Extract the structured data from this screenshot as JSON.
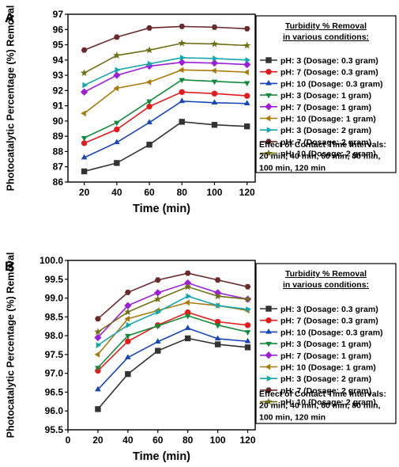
{
  "chart_data": [
    {
      "type": "line",
      "panel_label": "A",
      "xlabel": "Time (min)",
      "ylabel": "Photocatalytic Percentage (%) Removal",
      "xlim": [
        10,
        125
      ],
      "ylim": [
        86,
        97
      ],
      "xticks": [
        20,
        40,
        60,
        80,
        100,
        120
      ],
      "yticks": [
        86,
        87,
        88,
        89,
        90,
        91,
        92,
        93,
        94,
        95,
        96,
        97
      ],
      "x": [
        20,
        40,
        60,
        80,
        100,
        120
      ],
      "legend": {
        "title_line1": "Turbidity % Removal",
        "title_line2": "in various conditions:",
        "note_lines": [
          "Effect of Contact Time Intervals:",
          "20 min, 40 min, 60 min, 80 min,",
          "100 min, 120 min"
        ],
        "placement": "right, outside plot"
      },
      "series": [
        {
          "name": "pH: 3 (Dosage: 0.3 gram)",
          "color": "#333333",
          "marker": "square",
          "values": [
            86.7,
            87.25,
            88.45,
            89.95,
            89.75,
            89.65
          ]
        },
        {
          "name": "pH: 7 (Dosage: 0.3 gram)",
          "color": "#e41b1b",
          "marker": "circle",
          "values": [
            88.55,
            89.45,
            90.95,
            91.9,
            91.8,
            91.65
          ]
        },
        {
          "name": "pH: 10 (Dosage: 0.3 gram)",
          "color": "#1747b5",
          "marker": "triangle-up",
          "values": [
            87.6,
            88.6,
            89.9,
            91.3,
            91.2,
            91.15
          ]
        },
        {
          "name": "pH: 3 (Dosage: 1 gram)",
          "color": "#138a3a",
          "marker": "triangle-down",
          "values": [
            88.9,
            89.9,
            91.3,
            92.7,
            92.6,
            92.5
          ]
        },
        {
          "name": "pH: 7 (Dosage: 1 gram)",
          "color": "#9b1fd8",
          "marker": "diamond",
          "values": [
            91.9,
            93.0,
            93.6,
            93.85,
            93.8,
            93.7
          ]
        },
        {
          "name": "pH: 10 (Dosage: 1 gram)",
          "color": "#a87c0c",
          "marker": "triangle-left",
          "values": [
            90.5,
            92.15,
            92.55,
            93.35,
            93.3,
            93.2
          ]
        },
        {
          "name": "pH: 3 (Dosage: 2 gram)",
          "color": "#14a6ad",
          "marker": "triangle-right",
          "values": [
            92.35,
            93.35,
            93.75,
            94.15,
            94.1,
            94.0
          ]
        },
        {
          "name": "pH: 7 (Dosage: 2 gram)",
          "color": "#6b2a2a",
          "marker": "hexagon",
          "values": [
            94.65,
            95.5,
            96.1,
            96.2,
            96.15,
            96.05
          ]
        },
        {
          "name": "pH: 10 (Dosage: 2 gram)",
          "color": "#6e6e14",
          "marker": "star",
          "values": [
            93.15,
            94.3,
            94.65,
            95.1,
            95.05,
            94.95
          ]
        }
      ]
    },
    {
      "type": "line",
      "panel_label": "B",
      "xlabel": "Time (min)",
      "ylabel": "Photocatalytic Percentage (%) Removal",
      "xlim": [
        0,
        125
      ],
      "ylim": [
        95.5,
        100.0
      ],
      "xticks": [
        0,
        20,
        40,
        60,
        80,
        100,
        120
      ],
      "yticks": [
        "95.5",
        "96.0",
        "96.5",
        "97.0",
        "97.5",
        "98.0",
        "98.5",
        "99.0",
        "99.5",
        "100.0"
      ],
      "x": [
        20,
        40,
        60,
        80,
        100,
        120
      ],
      "legend": {
        "title_line1": "Turbidity % Removal",
        "title_line2": "in various conditions:",
        "note_lines": [
          "Effect of Contact Time Intervals:",
          "20 min, 40 min, 60 min, 80 min,",
          "100 min, 120 min"
        ],
        "placement": "right, outside plot"
      },
      "series": [
        {
          "name": "pH: 3 (Dosage: 0.3 gram)",
          "color": "#333333",
          "marker": "square",
          "values": [
            96.05,
            96.98,
            97.6,
            97.93,
            97.77,
            97.69
          ]
        },
        {
          "name": "pH: 7 (Dosage: 0.3 gram)",
          "color": "#e41b1b",
          "marker": "circle",
          "values": [
            97.07,
            97.85,
            98.28,
            98.62,
            98.37,
            98.28
          ]
        },
        {
          "name": "pH: 10 (Dosage: 0.3 gram)",
          "color": "#1747b5",
          "marker": "triangle-up",
          "values": [
            96.57,
            97.42,
            97.84,
            98.2,
            97.92,
            97.85
          ]
        },
        {
          "name": "pH: 3 (Dosage: 1 gram)",
          "color": "#138a3a",
          "marker": "triangle-down",
          "values": [
            97.15,
            98.0,
            98.26,
            98.53,
            98.28,
            98.1
          ]
        },
        {
          "name": "pH: 7 (Dosage: 1 gram)",
          "color": "#9b1fd8",
          "marker": "diamond",
          "values": [
            97.95,
            98.8,
            99.14,
            99.4,
            99.14,
            98.97
          ]
        },
        {
          "name": "pH: 10 (Dosage: 1 gram)",
          "color": "#a87c0c",
          "marker": "triangle-left",
          "values": [
            97.5,
            98.45,
            98.67,
            98.88,
            98.8,
            98.67
          ]
        },
        {
          "name": "pH: 3 (Dosage: 2 gram)",
          "color": "#14a6ad",
          "marker": "triangle-right",
          "values": [
            97.75,
            98.28,
            98.63,
            99.05,
            98.8,
            98.7
          ]
        },
        {
          "name": "pH: 7 (Dosage: 2 gram)",
          "color": "#6b2a2a",
          "marker": "hexagon",
          "values": [
            98.45,
            99.15,
            99.48,
            99.66,
            99.48,
            99.3
          ]
        },
        {
          "name": "pH: 10 (Dosage: 2 gram)",
          "color": "#6e6e14",
          "marker": "star",
          "values": [
            98.1,
            98.63,
            98.97,
            99.3,
            99.05,
            98.97
          ]
        }
      ]
    }
  ]
}
